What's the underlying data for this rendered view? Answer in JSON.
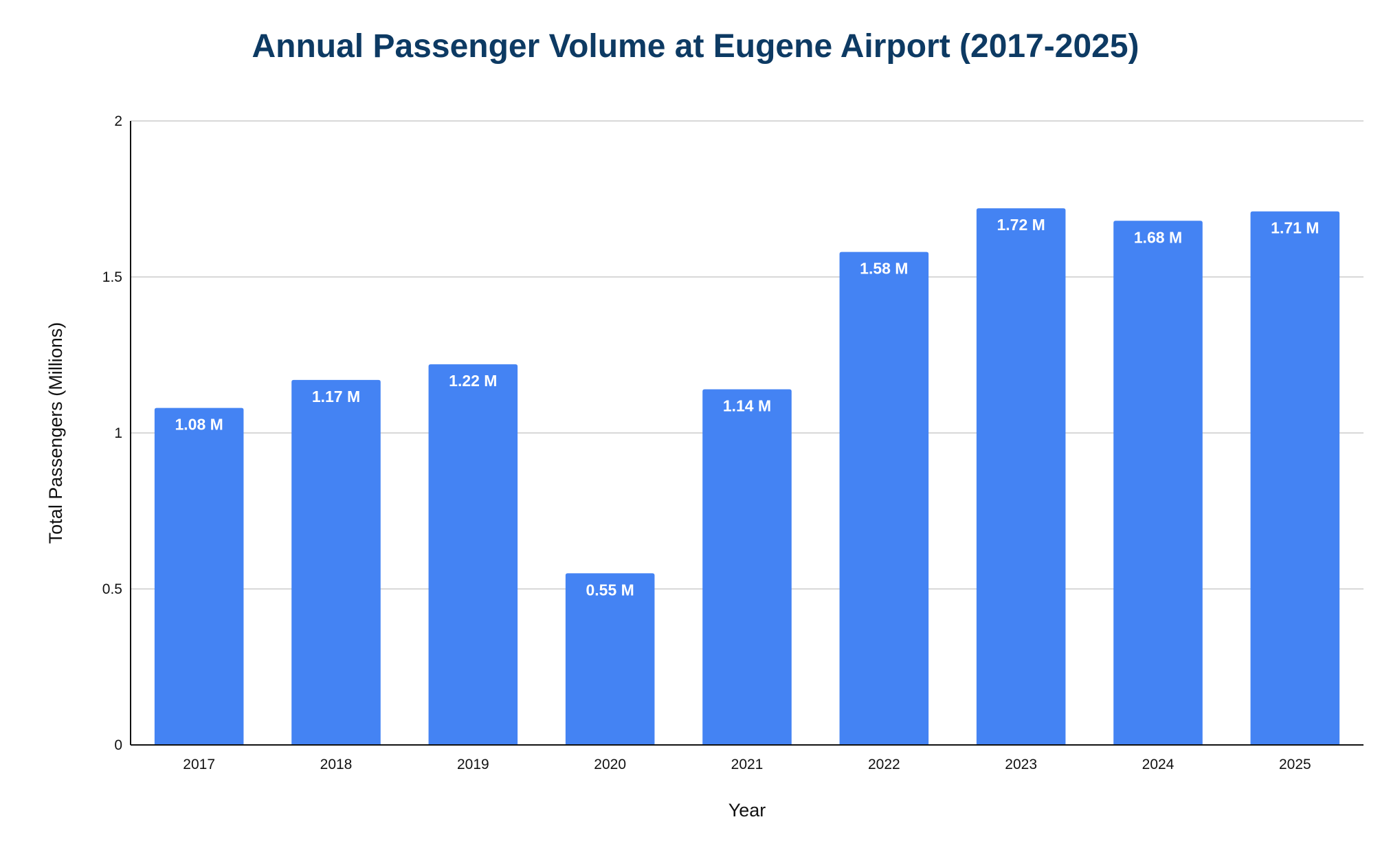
{
  "colors": {
    "bar": "#4483f3",
    "title": "#0d3a63",
    "gridline": "#cccccc",
    "axis": "#111111",
    "bar_label": "#ffffff"
  },
  "chart_data": {
    "type": "bar",
    "title": "Annual Passenger Volume at Eugene Airport (2017-2025)",
    "xlabel": "Year",
    "ylabel": "Total Passengers (Millions)",
    "categories": [
      "2017",
      "2018",
      "2019",
      "2020",
      "2021",
      "2022",
      "2023",
      "2024",
      "2025"
    ],
    "values": [
      1.08,
      1.17,
      1.22,
      0.55,
      1.14,
      1.58,
      1.72,
      1.68,
      1.71
    ],
    "value_labels": [
      "1.08 M",
      "1.17 M",
      "1.22 M",
      "0.55 M",
      "1.14 M",
      "1.58 M",
      "1.72 M",
      "1.68 M",
      "1.71 M"
    ],
    "ylim": [
      0,
      2
    ],
    "yticks": [
      0,
      0.5,
      1,
      1.5,
      2
    ],
    "ytick_labels": [
      "0",
      "0.5",
      "1",
      "1.5",
      "2"
    ],
    "grid": true,
    "legend": "none"
  }
}
